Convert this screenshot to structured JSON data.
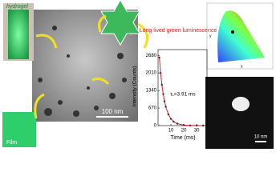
{
  "labels": {
    "hydrogel": "hydrogel",
    "film": "Film",
    "tem_scale": "100 nm",
    "inset_scale": "10 nm",
    "cie_x": "x",
    "cie_y": "y"
  },
  "chart_data": {
    "type": "scatter",
    "title": "Long lived green luminescence",
    "x_label": "Time (ms)",
    "y_label": "Intensity (Counts)",
    "annotation": "τ₁=3.91 ms",
    "color": "#333333",
    "fit_color": "#e02020",
    "x": [
      1,
      2,
      3,
      4,
      5,
      6,
      8,
      10,
      12,
      15,
      20,
      25,
      30,
      35
    ],
    "values": [
      2600,
      2010,
      1554,
      1201,
      929,
      718,
      429,
      257,
      153,
      73,
      20,
      6,
      2,
      0
    ],
    "xlim": [
      0,
      38
    ],
    "xticks": [
      10,
      20,
      30
    ],
    "ylim": [
      0,
      2900
    ],
    "yticks": [
      0,
      670,
      1340,
      2010,
      2680
    ]
  }
}
